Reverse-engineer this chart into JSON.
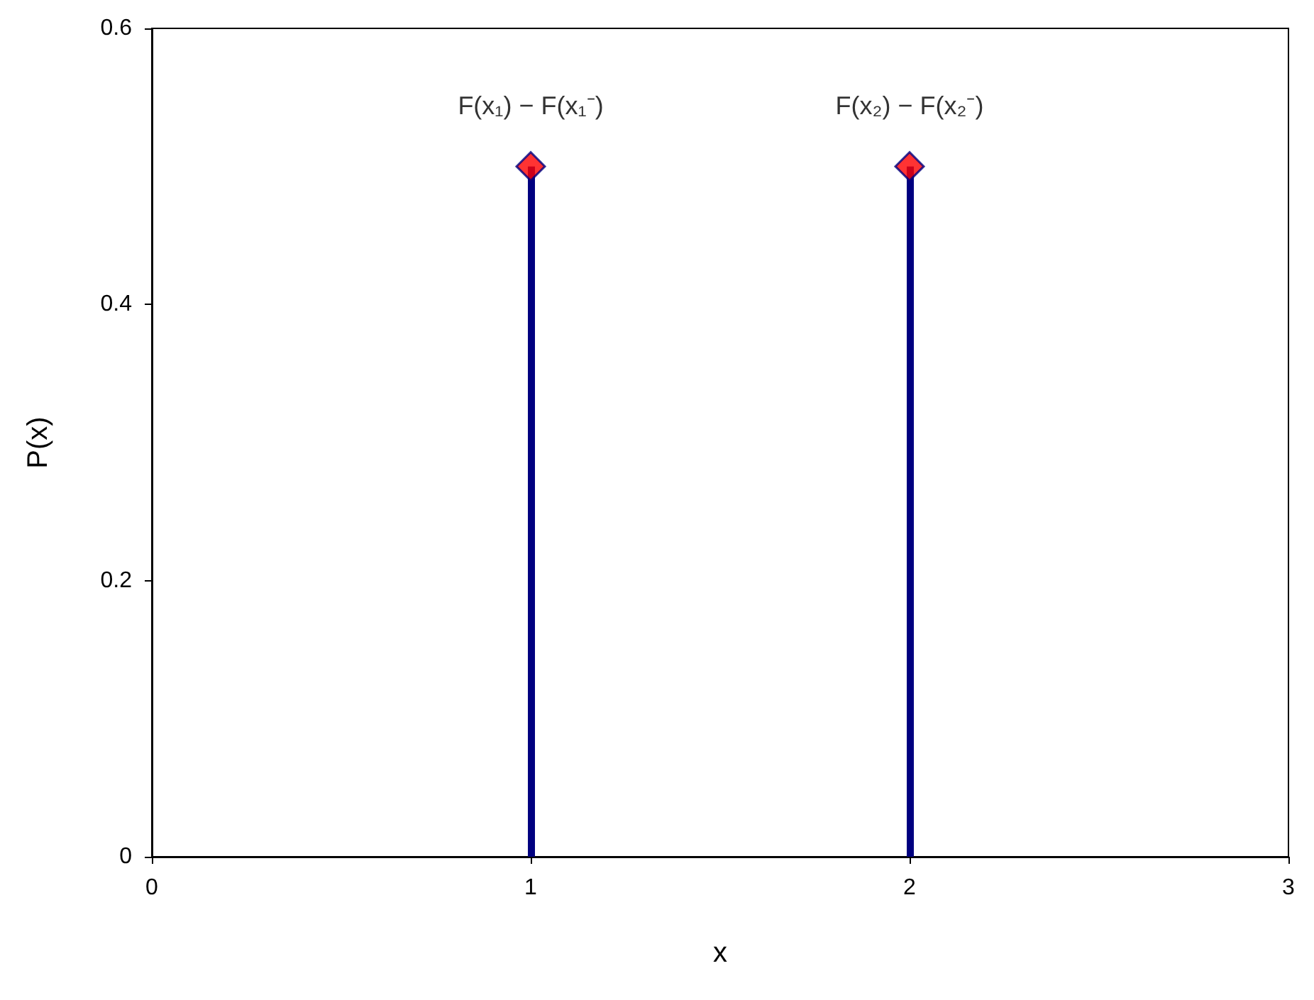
{
  "chart_data": {
    "type": "lollipop",
    "xlabel": "x",
    "ylabel": "P(x)",
    "x": [
      1,
      2
    ],
    "series": [
      {
        "color": "#000080",
        "colors": [
          "#ff0000",
          "#ff0000"
        ],
        "values": [
          0.5,
          0.5
        ]
      }
    ],
    "marker": "diamond",
    "xlim": [
      0,
      3
    ],
    "xticks": [
      0,
      1,
      2,
      3
    ],
    "ylim": [
      0,
      0.6
    ],
    "yticks": [
      0,
      0.2,
      0.4,
      0.6
    ],
    "annotations": [
      {
        "text": "F(x₁) − F(x₁⁻)",
        "x": 1,
        "y": 0.5
      },
      {
        "text": "F(x₂) − F(x₂⁻)",
        "x": 2,
        "y": 0.5
      }
    ]
  }
}
